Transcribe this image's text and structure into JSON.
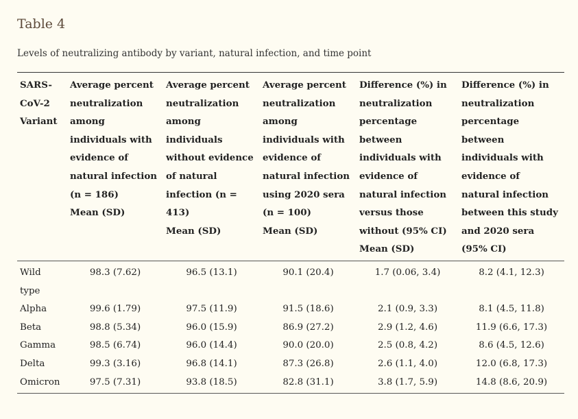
{
  "table_title": "Table 4",
  "caption": "Levels of neutralizing antibody by variant, natural infection, and time point",
  "columns": [
    {
      "lines": [
        "SARS-",
        "CoV-2",
        "Variant"
      ]
    },
    {
      "lines": [
        "Average percent",
        "neutralization",
        "among",
        "individuals with",
        "evidence of",
        "natural infection",
        "(n = 186)",
        "Mean (SD)"
      ]
    },
    {
      "lines": [
        "Average percent",
        "neutralization",
        "among",
        "individuals",
        "without evidence",
        "of natural",
        "infection (n =",
        "413)",
        "Mean (SD)"
      ]
    },
    {
      "lines": [
        "Average percent",
        "neutralization",
        "among",
        "individuals with",
        "evidence of",
        "natural infection",
        "using 2020 sera",
        "(n = 100)",
        "Mean (SD)"
      ]
    },
    {
      "lines": [
        "Difference (%) in",
        "neutralization",
        "percentage",
        "between",
        "individuals with",
        "evidence of",
        "natural infection",
        "versus those",
        "without (95% CI)",
        "Mean (SD)"
      ]
    },
    {
      "lines": [
        "Difference (%) in",
        "neutralization",
        "percentage",
        "between",
        "individuals with",
        "evidence of",
        "natural infection",
        "between this study",
        "and 2020 sera",
        "(95% CI)"
      ]
    }
  ],
  "rows": [
    {
      "variant_lines": [
        "Wild",
        "type"
      ],
      "cells": [
        "98.3 (7.62)",
        "96.5 (13.1)",
        "90.1 (20.4)",
        "1.7 (0.06, 3.4)",
        "8.2 (4.1, 12.3)"
      ]
    },
    {
      "variant_lines": [
        "Alpha"
      ],
      "cells": [
        "99.6 (1.79)",
        "97.5 (11.9)",
        "91.5 (18.6)",
        "2.1 (0.9, 3.3)",
        "8.1 (4.5, 11.8)"
      ]
    },
    {
      "variant_lines": [
        "Beta"
      ],
      "cells": [
        "98.8 (5.34)",
        "96.0 (15.9)",
        "86.9 (27.2)",
        "2.9 (1.2, 4.6)",
        "11.9 (6.6, 17.3)"
      ]
    },
    {
      "variant_lines": [
        "Gamma"
      ],
      "cells": [
        "98.5 (6.74)",
        "96.0 (14.4)",
        "90.0 (20.0)",
        "2.5 (0.8, 4.2)",
        "8.6 (4.5, 12.6)"
      ]
    },
    {
      "variant_lines": [
        "Delta"
      ],
      "cells": [
        "99.3 (3.16)",
        "96.8 (14.1)",
        "87.3 (26.8)",
        "2.6 (1.1, 4.0)",
        "12.0 (6.8, 17.3)"
      ]
    },
    {
      "variant_lines": [
        "Omicron"
      ],
      "cells": [
        "97.5 (7.31)",
        "93.8 (18.5)",
        "82.8 (31.1)",
        "3.8 (1.7, 5.9)",
        "14.8 (8.6, 20.9)"
      ]
    }
  ]
}
